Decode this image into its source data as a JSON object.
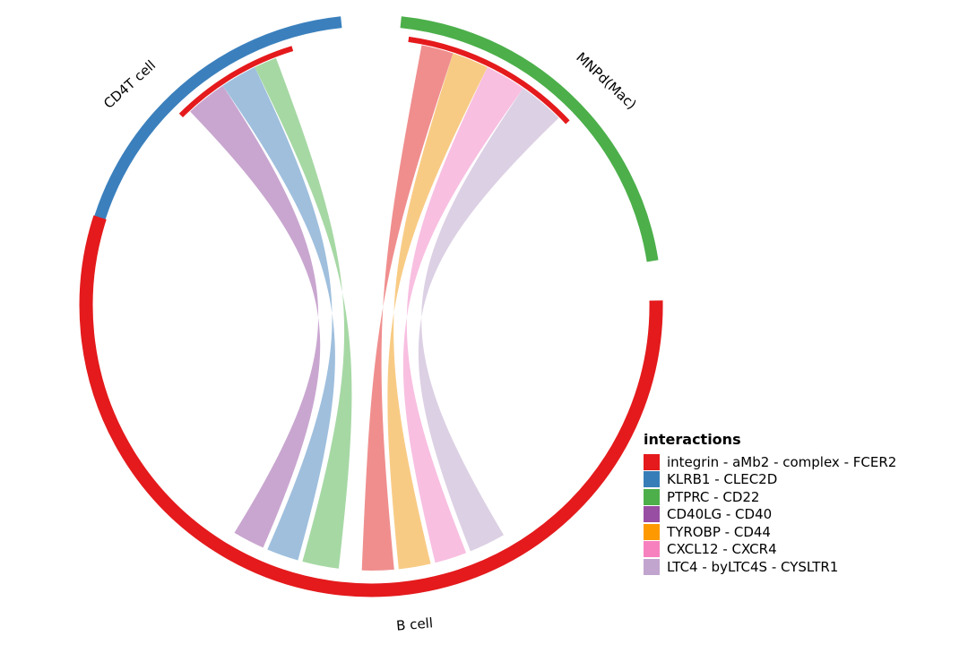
{
  "segments": [
    {
      "id": "cd4t",
      "label": "CD4T cell",
      "color": "#3b80bd"
    },
    {
      "id": "mnp",
      "label": "MNPd(Mac)",
      "color": "#4caf4a"
    },
    {
      "id": "bcell",
      "label": "B cell",
      "color": "#e41a1c"
    }
  ],
  "legend": {
    "title": "interactions",
    "items": [
      {
        "label": "integrin - aMb2 - complex - FCER2",
        "color": "#e41a1c"
      },
      {
        "label": "KLRB1 - CLEC2D",
        "color": "#377eb8"
      },
      {
        "label": "PTPRC - CD22",
        "color": "#4daf4a"
      },
      {
        "label": "CD40LG - CD40",
        "color": "#984ea3"
      },
      {
        "label": "TYROBP - CD44",
        "color": "#ff9900"
      },
      {
        "label": "CXCL12 - CXCR4",
        "color": "#f781bf"
      },
      {
        "label": "LTC4 - byLTC4S - CYSLTR1",
        "color": "#c2a5cf"
      }
    ]
  },
  "links": [
    {
      "interaction": "PTPRC - CD22",
      "from": "CD4T cell",
      "to": "B cell",
      "color": "#a6d8a4"
    },
    {
      "interaction": "KLRB1 - CLEC2D",
      "from": "CD4T cell",
      "to": "B cell",
      "color": "#9fbfdd"
    },
    {
      "interaction": "LTC4 - byLTC4S - CYSLTR1",
      "from": "CD4T cell",
      "to": "B cell",
      "color": "#c9a6d0"
    },
    {
      "interaction": "integrin - aMb2 - complex - FCER2",
      "from": "MNPd(Mac)",
      "to": "B cell",
      "color": "#f08e8e"
    },
    {
      "interaction": "TYROBP - CD44",
      "from": "MNPd(Mac)",
      "to": "B cell",
      "color": "#f8cb85"
    },
    {
      "interaction": "CXCL12 - CXCR4",
      "from": "MNPd(Mac)",
      "to": "B cell",
      "color": "#f8bfe1"
    },
    {
      "interaction": "LTC4 - byLTC4S - CYSLTR1",
      "from": "MNPd(Mac)",
      "to": "B cell",
      "color": "#dcd0e4"
    }
  ]
}
